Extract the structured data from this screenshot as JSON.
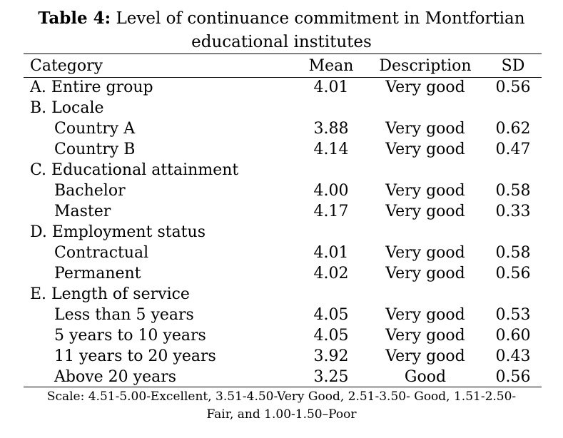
{
  "title": {
    "label": "Table 4:",
    "line1": " Level of continuance commitment in Montfortian",
    "line2": "educational institutes"
  },
  "header": {
    "category": "Category",
    "mean": "Mean",
    "description": "Description",
    "sd": "SD"
  },
  "rows": [
    {
      "category": "A. Entire group",
      "mean": "4.01",
      "description": "Very good",
      "sd": "0.56"
    },
    {
      "category": "B. Locale",
      "mean": "",
      "description": "",
      "sd": ""
    },
    {
      "category": "Country A",
      "mean": "3.88",
      "description": "Very good",
      "sd": "0.62"
    },
    {
      "category": "Country B",
      "mean": "4.14",
      "description": "Very good",
      "sd": "0.47"
    },
    {
      "category": "C. Educational attainment",
      "mean": "",
      "description": "",
      "sd": ""
    },
    {
      "category": "Bachelor",
      "mean": "4.00",
      "description": "Very good",
      "sd": "0.58"
    },
    {
      "category": "Master",
      "mean": "4.17",
      "description": "Very good",
      "sd": "0.33"
    },
    {
      "category": "D. Employment status",
      "mean": "",
      "description": "",
      "sd": ""
    },
    {
      "category": "Contractual",
      "mean": "4.01",
      "description": "Very good",
      "sd": "0.58"
    },
    {
      "category": "Permanent",
      "mean": "4.02",
      "description": "Very good",
      "sd": "0.56"
    },
    {
      "category": "E. Length of service",
      "mean": "",
      "description": "",
      "sd": ""
    },
    {
      "category": "Less than 5 years",
      "mean": "4.05",
      "description": "Very good",
      "sd": "0.53"
    },
    {
      "category": "5 years to 10 years",
      "mean": "4.05",
      "description": "Very good",
      "sd": "0.60"
    },
    {
      "category": "11 years to 20 years",
      "mean": "3.92",
      "description": "Very good",
      "sd": "0.43"
    },
    {
      "category": "Above 20 years",
      "mean": "3.25",
      "description": "Good",
      "sd": "0.56"
    }
  ],
  "note": {
    "line1": "Scale: 4.51-5.00-Excellent, 3.51-4.50-Very Good, 2.51-3.50- Good, 1.51-2.50-",
    "line2": "Fair, and 1.00-1.50–Poor"
  }
}
